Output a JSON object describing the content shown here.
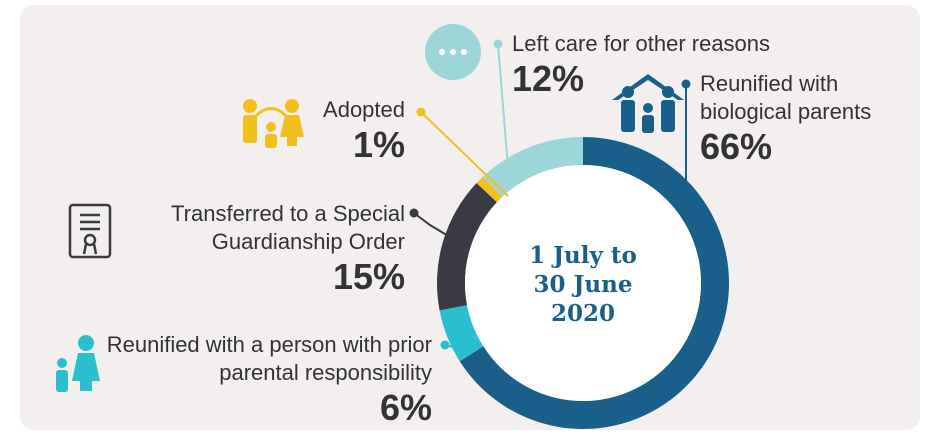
{
  "chart_data": {
    "type": "pie",
    "center_text": [
      "1 July to",
      "30 June",
      "2020"
    ],
    "categories": [
      "Reunified with biological parents",
      "Reunified with a person with prior parental responsibility",
      "Transferred to a Special Guardianship Order",
      "Adopted",
      "Left care for other reasons"
    ],
    "values": [
      66,
      6,
      15,
      1,
      12
    ],
    "value_labels": [
      "66%",
      "6%",
      "15%",
      "1%",
      "12%"
    ],
    "colors": [
      "#1a5f8a",
      "#29bfcc",
      "#3a3a45",
      "#f2c01e",
      "#9dd6d8"
    ]
  }
}
